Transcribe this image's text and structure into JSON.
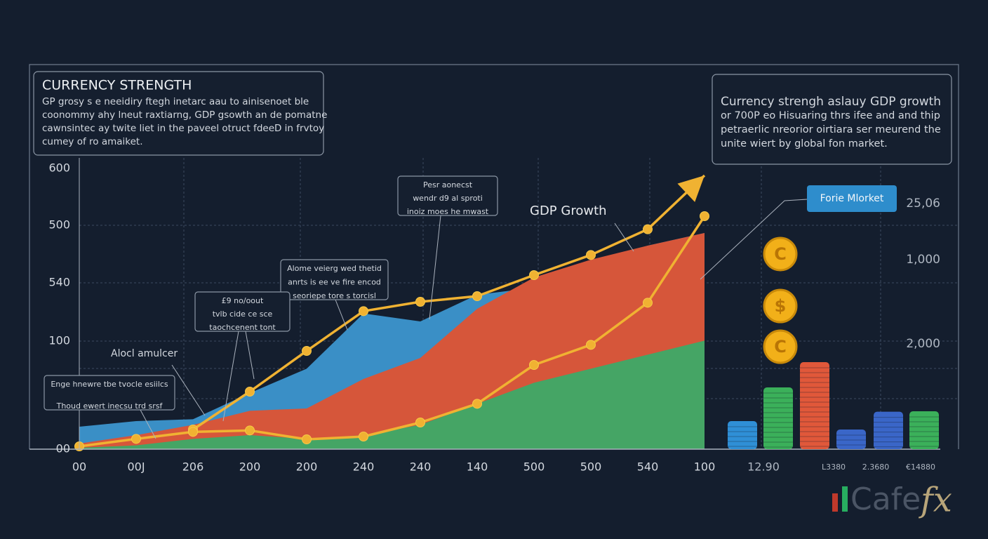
{
  "title": "CURRENCY STRENGTH",
  "intro_lines": [
    "GP grosy s e neeidiry ftegh inetarc aau to ainisenoet ble",
    "coonommy ahy lneut raxtiarng, GDP gsowth an de pomatne",
    "cawnsintec ay twite liet in the paveel otruct fdeeD in frvtoy",
    "cumey of ro amaiket."
  ],
  "info_lines": [
    "Currency strengh aslauy GDP growth",
    "or 700P eo Hisuaring thrs ifee and and thip",
    "petraerlic nreorior oirtiara ser meurend the",
    "unite wiert by global fon market."
  ],
  "callouts": [
    {
      "lines": [
        "Pesr aonecst",
        "wendr d9 al sproti",
        "inoiz moes he mwast"
      ]
    },
    {
      "lines": [
        "Alome veierg wed thetid",
        "anrts is ee ve fire encod",
        "seoriepe tore s torcisl"
      ]
    },
    {
      "lines": [
        "£9 no/oout",
        "tvlb cide ce sce",
        "taochcenent tont"
      ]
    },
    {
      "lines": [
        "Enge hnewre tbe tvocle esiilcs",
        "Thoud ewert inecsu trd srsf"
      ]
    }
  ],
  "gdp_label": "GDP Growth",
  "side_label": "Alocl amulcer",
  "forex_tag": "Forie Mlorket",
  "right_labels": [
    "25,06",
    "1,000",
    "2,000"
  ],
  "bottom_right_labels": [
    "12.90",
    "L3380",
    "2.3680",
    "€14880"
  ],
  "coins": [
    "C",
    "$",
    "C"
  ],
  "logo": {
    "left": "Cafe",
    "right": "fx"
  },
  "chart_data": {
    "type": "area",
    "categories": [
      "00",
      "00J",
      "206",
      "200",
      "200",
      "240",
      "240",
      "140",
      "500",
      "500",
      "540",
      "100"
    ],
    "y_labels": [
      "600",
      "500",
      "540",
      "100",
      "00"
    ],
    "series": [
      {
        "color": "#3a8fc6",
        "values": [
          48,
          60,
          64,
          120,
          172,
          290,
          273,
          330,
          345,
          397,
          435,
          462
        ]
      },
      {
        "color": "#d6563a",
        "values": [
          12,
          30,
          52,
          82,
          87,
          150,
          195,
          300,
          367,
          405,
          435,
          462
        ]
      },
      {
        "color": "#45a565",
        "values": [
          3,
          8,
          22,
          30,
          22,
          30,
          52,
          97,
          142,
          172,
          202,
          232
        ]
      }
    ],
    "lines": [
      {
        "color": "#f0b232",
        "values": [
          null,
          null,
          42,
          123,
          210,
          295,
          315,
          327,
          372,
          415,
          470,
          585
        ]
      },
      {
        "color": "#f0b232",
        "values": [
          6,
          22,
          37,
          40,
          21,
          27,
          57,
          97,
          180,
          223,
          313,
          498
        ]
      }
    ],
    "stacks": {
      "values": [
        60,
        132,
        186,
        42,
        80,
        81
      ],
      "colors": [
        "#2f8fd6",
        "#3bb05a",
        "#e0583a",
        "#3a66c8",
        "#3a66c8",
        "#3bb05a"
      ]
    }
  }
}
